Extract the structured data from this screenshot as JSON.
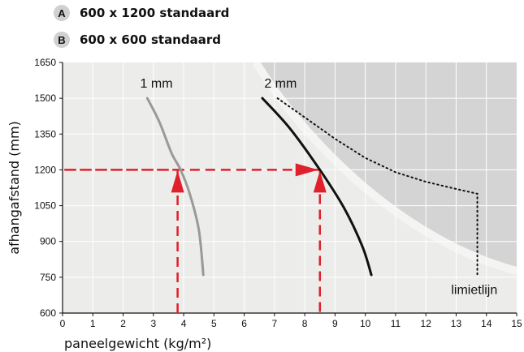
{
  "legend": {
    "items": [
      {
        "badge": "A",
        "label": "600 x 1200 standaard"
      },
      {
        "badge": "B",
        "label": "600 x 600 standaard"
      }
    ]
  },
  "chart_data": {
    "type": "line",
    "xlabel": "paneelgewicht (kg/m²)",
    "ylabel": "afhangafstand (mm)",
    "xlim": [
      0,
      15
    ],
    "ylim": [
      600,
      1650
    ],
    "xticks": [
      0,
      1,
      2,
      3,
      4,
      5,
      6,
      7,
      8,
      9,
      10,
      11,
      12,
      13,
      14,
      15
    ],
    "yticks": [
      600,
      750,
      900,
      1050,
      1200,
      1350,
      1500,
      1650
    ],
    "grid": true,
    "series": [
      {
        "name": "1 mm",
        "color": "#999999",
        "style": "solid",
        "points": [
          [
            2.8,
            1500
          ],
          [
            3.2,
            1400
          ],
          [
            3.6,
            1270
          ],
          [
            3.9,
            1200
          ],
          [
            4.2,
            1100
          ],
          [
            4.5,
            950
          ],
          [
            4.65,
            760
          ]
        ]
      },
      {
        "name": "2 mm",
        "color": "#111111",
        "style": "solid",
        "points": [
          [
            6.6,
            1500
          ],
          [
            7.5,
            1375
          ],
          [
            8.5,
            1200
          ],
          [
            9.3,
            1040
          ],
          [
            9.9,
            880
          ],
          [
            10.2,
            760
          ]
        ]
      },
      {
        "name": "limietlijn",
        "color": "#111111",
        "style": "dotted",
        "points": [
          [
            7.1,
            1500
          ],
          [
            8.0,
            1420
          ],
          [
            9.0,
            1330
          ],
          [
            10.0,
            1250
          ],
          [
            11.0,
            1190
          ],
          [
            12.0,
            1150
          ],
          [
            13.0,
            1120
          ],
          [
            13.7,
            1100
          ],
          [
            13.7,
            760
          ]
        ]
      }
    ],
    "reference_lines": [
      {
        "color": "#e0202a",
        "style": "dashed",
        "points": [
          [
            3.8,
            600
          ],
          [
            3.8,
            1200
          ],
          [
            0,
            1200
          ],
          [
            8.5,
            1200
          ],
          [
            8.5,
            600
          ]
        ]
      }
    ],
    "arrows": [
      {
        "at": [
          3.8,
          1200
        ],
        "direction": "up",
        "color": "#e0202a"
      },
      {
        "at": [
          8.5,
          1200
        ],
        "direction": "up",
        "color": "#e0202a"
      },
      {
        "at": [
          8.5,
          1200
        ],
        "direction": "right",
        "color": "#e0202a"
      }
    ],
    "annotations": [
      {
        "text": "1 mm",
        "x": 3.1,
        "y": 1545
      },
      {
        "text": "2 mm",
        "x": 7.2,
        "y": 1545
      },
      {
        "text": "limietlijn",
        "x": 13.6,
        "y": 680
      }
    ],
    "colors": {
      "plot_background": "#ececea",
      "unsafe_region": "#d4d4d4",
      "axis": "#111111",
      "grid": "#ffffff",
      "accent": "#e0202a"
    }
  }
}
